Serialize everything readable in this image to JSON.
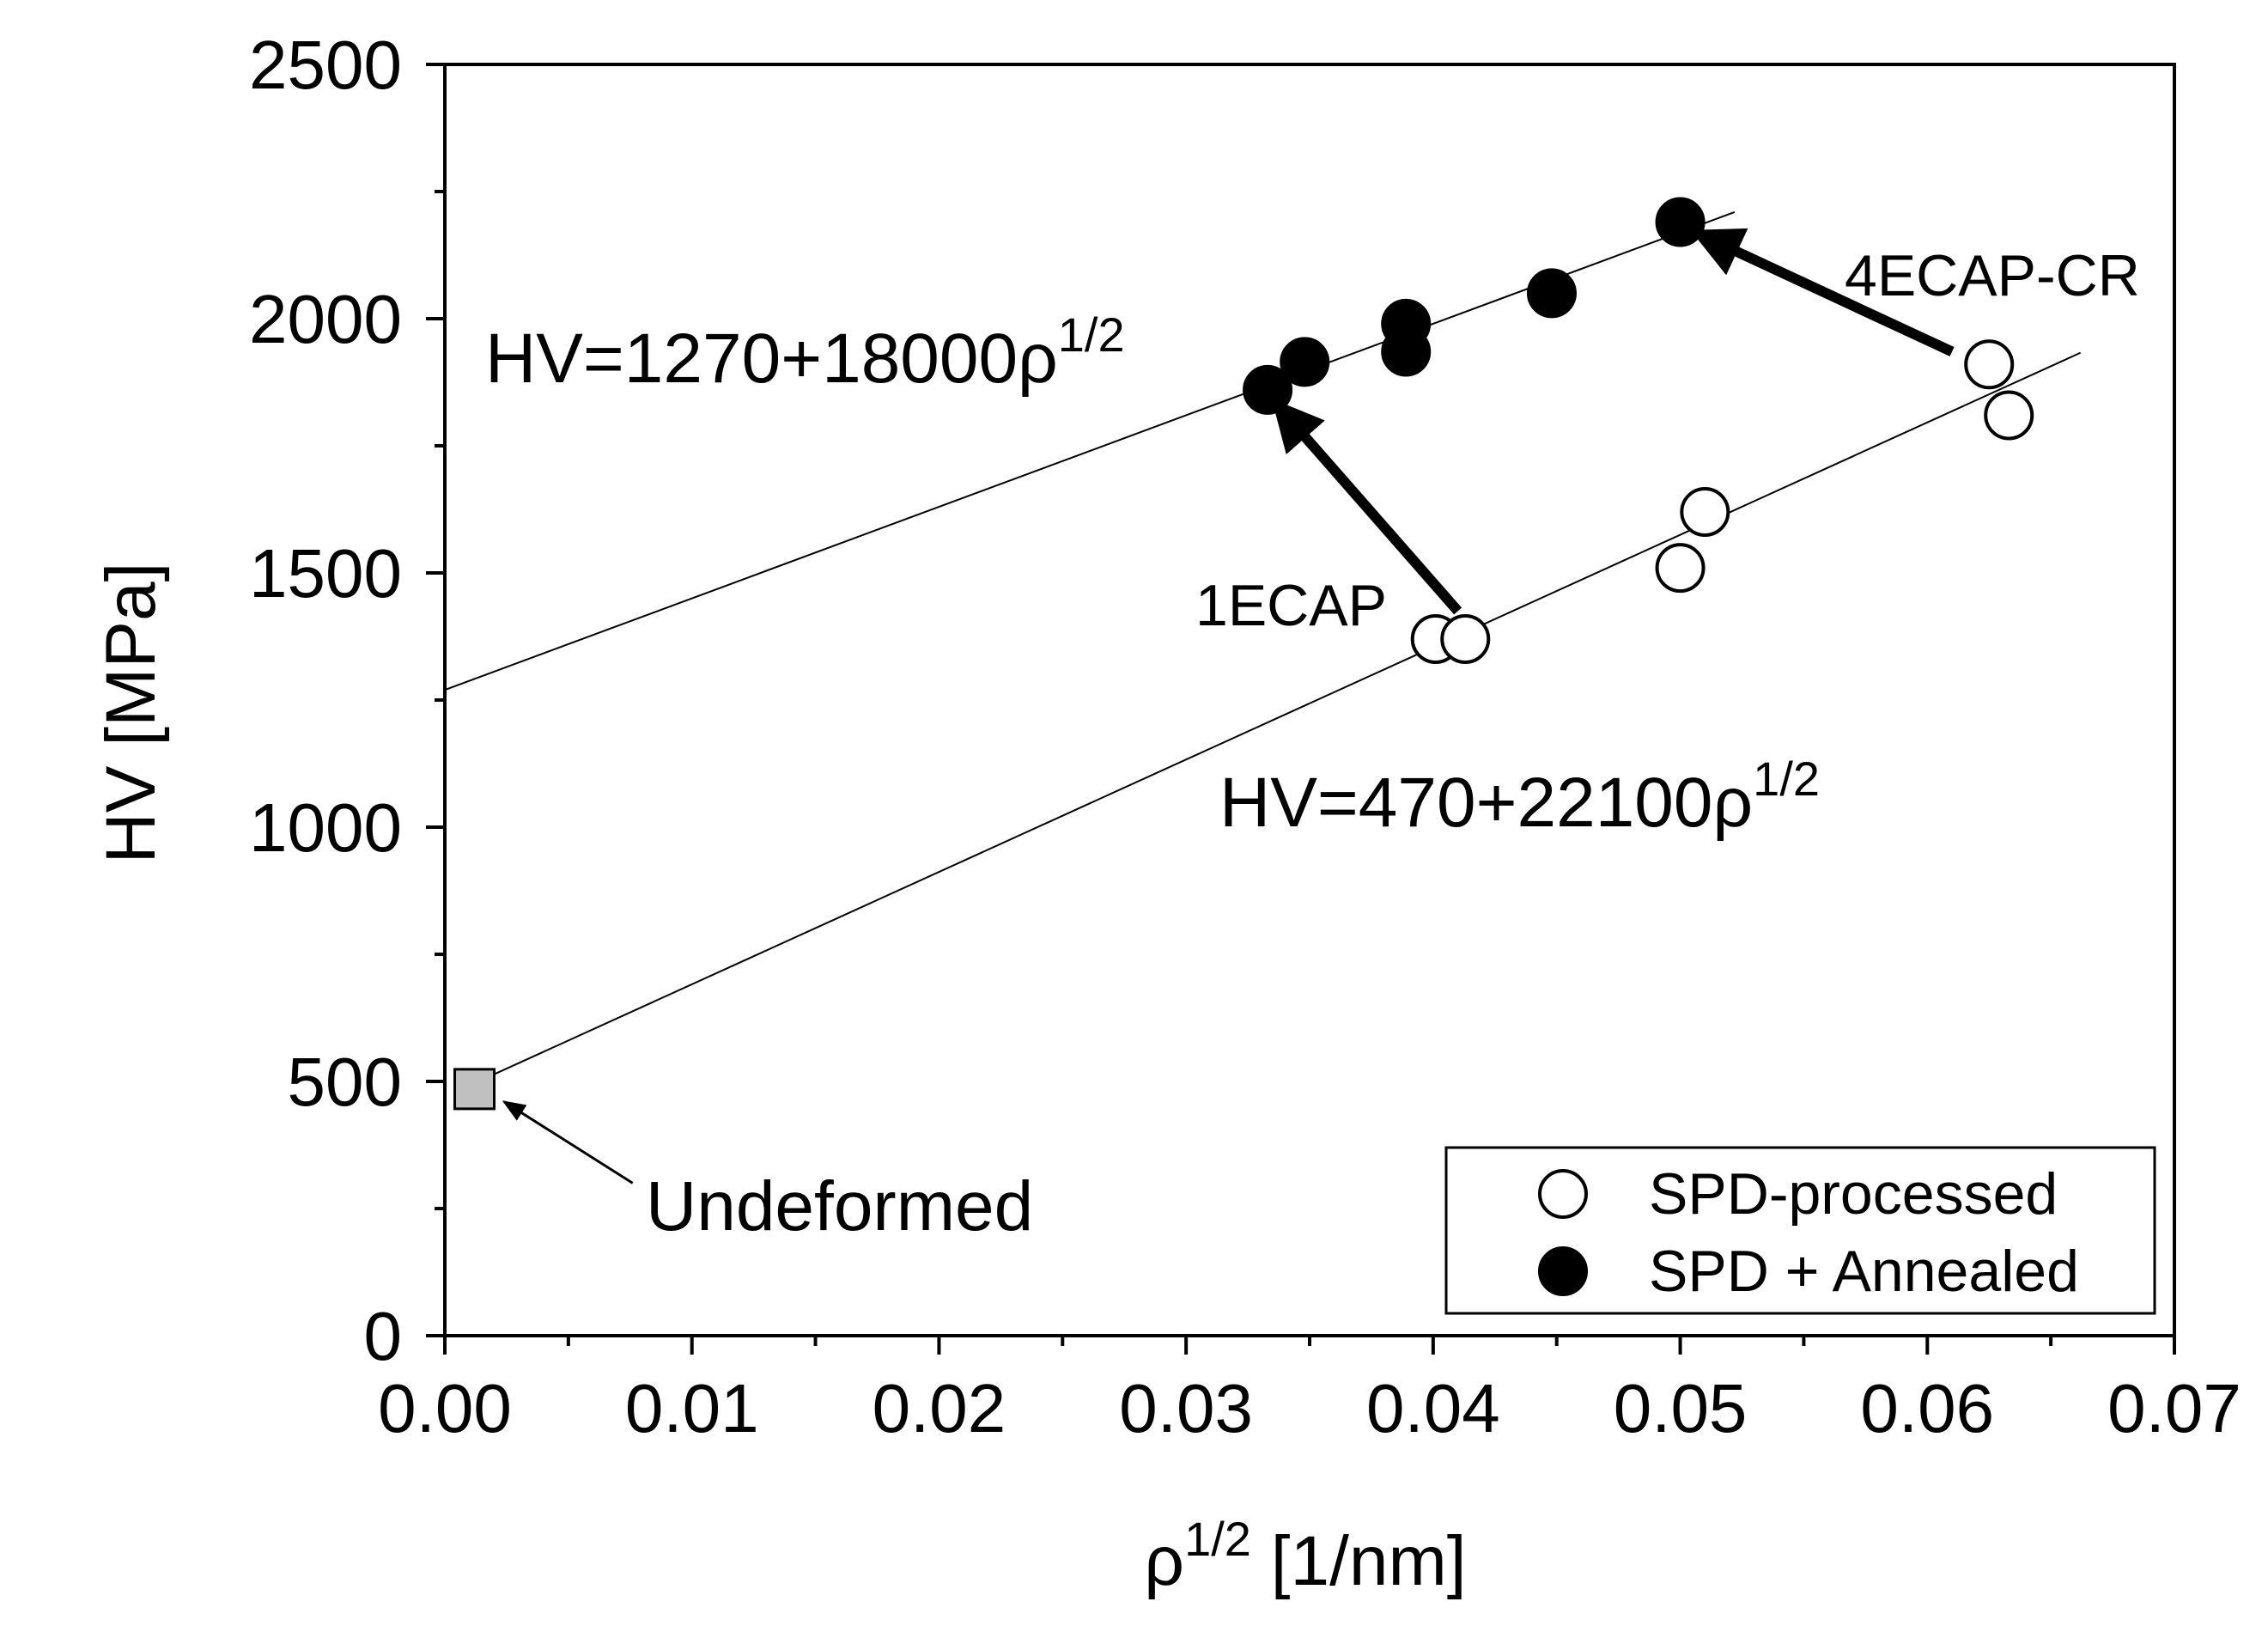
{
  "chart_data": {
    "type": "scatter",
    "xlabel": "ρ",
    "xlabel_sup": "1/2",
    "xlabel_unit": " [1/nm]",
    "ylabel": "HV [MPa]",
    "xlim": [
      0,
      0.07
    ],
    "ylim": [
      0,
      2500
    ],
    "x_ticks": [
      0.0,
      0.01,
      0.02,
      0.03,
      0.04,
      0.05,
      0.06,
      0.07
    ],
    "x_tick_labels": [
      "0.00",
      "0.01",
      "0.02",
      "0.03",
      "0.04",
      "0.05",
      "0.06",
      "0.07"
    ],
    "x_minor_ticks": [
      0.005,
      0.015,
      0.025,
      0.035,
      0.045,
      0.055,
      0.065
    ],
    "y_ticks": [
      0,
      500,
      1000,
      1500,
      2000,
      2500
    ],
    "y_tick_labels": [
      "0",
      "500",
      "1000",
      "1500",
      "2000",
      "2500"
    ],
    "y_minor_ticks": [
      250,
      750,
      1250,
      1750,
      2250
    ],
    "series": [
      {
        "name": "SPD-processed",
        "marker": "open-circle",
        "points": [
          {
            "x": 0.0401,
            "y": 1370
          },
          {
            "x": 0.0413,
            "y": 1370
          },
          {
            "x": 0.05,
            "y": 1510
          },
          {
            "x": 0.051,
            "y": 1620
          },
          {
            "x": 0.0625,
            "y": 1910
          },
          {
            "x": 0.0633,
            "y": 1810
          }
        ]
      },
      {
        "name": "SPD + Annealed",
        "marker": "filled-circle",
        "points": [
          {
            "x": 0.0333,
            "y": 1860
          },
          {
            "x": 0.0348,
            "y": 1915
          },
          {
            "x": 0.0389,
            "y": 1990
          },
          {
            "x": 0.0389,
            "y": 1935
          },
          {
            "x": 0.0448,
            "y": 2050
          },
          {
            "x": 0.05,
            "y": 2190
          }
        ]
      },
      {
        "name": "Undeformed",
        "marker": "filled-square",
        "color": "#c0c0c0",
        "points": [
          {
            "x": 0.0012,
            "y": 485
          }
        ]
      }
    ],
    "fit_lines": [
      {
        "intercept": 1270,
        "slope": 18000,
        "x_range": [
          0.0,
          0.0522
        ]
      },
      {
        "intercept": 470,
        "slope": 22100,
        "x_range": [
          0.0012,
          0.0662
        ]
      }
    ],
    "annotations": {
      "eq_annealed_main": "HV=1270+18000ρ",
      "eq_annealed_sup": "1/2",
      "eq_processed_main": "HV=470+22100ρ",
      "eq_processed_sup": "1/2",
      "label_1ecap": "1ECAP",
      "label_4ecap": "4ECAP-CR",
      "label_undeformed": "Undeformed"
    },
    "arrows": [
      {
        "from": {
          "x": 0.041,
          "y": 1425
        },
        "to": {
          "x": 0.0336,
          "y": 1835
        },
        "style": "thick"
      },
      {
        "from": {
          "x": 0.061,
          "y": 1935
        },
        "to": {
          "x": 0.0506,
          "y": 2170
        },
        "style": "thick"
      },
      {
        "from": {
          "x": 0.0076,
          "y": 300
        },
        "to": {
          "x": 0.0024,
          "y": 460
        },
        "style": "thin"
      }
    ],
    "legend": {
      "position": "bottom-right",
      "entries": [
        {
          "label": "SPD-processed",
          "marker": "open-circle"
        },
        {
          "label": "SPD + Annealed",
          "marker": "filled-circle"
        }
      ]
    },
    "colors": {
      "marker_fill_open": "#ffffff",
      "marker_fill_filled": "#000000",
      "undeformed_fill": "#c0c0c0",
      "axis": "#000000"
    }
  }
}
